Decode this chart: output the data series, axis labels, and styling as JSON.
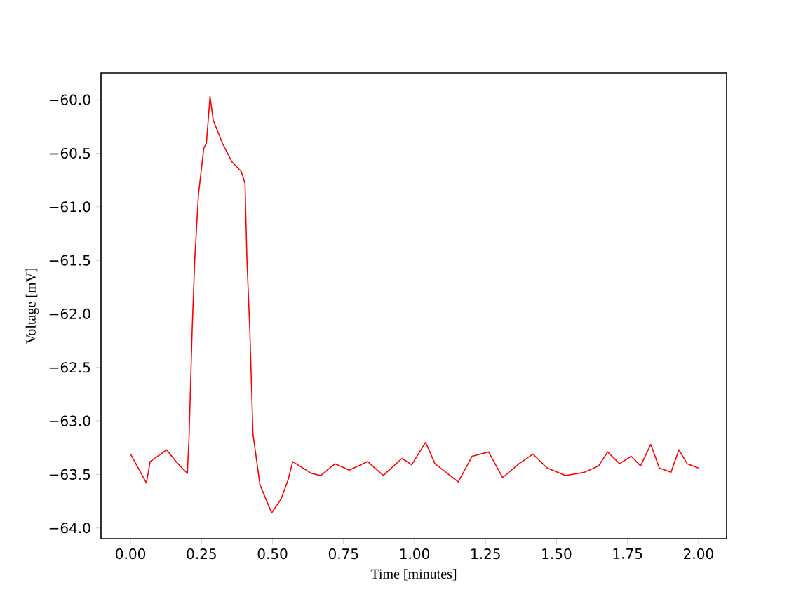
{
  "chart_data": {
    "type": "line",
    "xlabel": "Time [minutes]",
    "ylabel": "Voltage [mV]",
    "color": "#ff0000",
    "line_style": "solid",
    "x": [
      0,
      0.056,
      0.069,
      0.127,
      0.16,
      0.2,
      0.206,
      0.217,
      0.226,
      0.239,
      0.258,
      0.267,
      0.28,
      0.291,
      0.324,
      0.357,
      0.39,
      0.403,
      0.41,
      0.42,
      0.431,
      0.456,
      0.497,
      0.53,
      0.555,
      0.571,
      0.637,
      0.67,
      0.72,
      0.77,
      0.835,
      0.89,
      0.956,
      0.99,
      1.039,
      1.072,
      1.154,
      1.203,
      1.261,
      1.31,
      1.368,
      1.417,
      1.467,
      1.532,
      1.598,
      1.648,
      1.68,
      1.722,
      1.763,
      1.796,
      1.832,
      1.862,
      1.903,
      1.931,
      1.96,
      2.0
    ],
    "values": [
      -63.31,
      -63.58,
      -63.38,
      -63.27,
      -63.38,
      -63.49,
      -63.16,
      -62.15,
      -61.5,
      -60.89,
      -60.45,
      -60.41,
      -59.97,
      -60.19,
      -60.41,
      -60.58,
      -60.67,
      -60.78,
      -61.5,
      -62.15,
      -63.12,
      -63.6,
      -63.86,
      -63.73,
      -63.55,
      -63.38,
      -63.49,
      -63.51,
      -63.4,
      -63.46,
      -63.38,
      -63.51,
      -63.35,
      -63.41,
      -63.2,
      -63.4,
      -63.57,
      -63.33,
      -63.29,
      -63.53,
      -63.4,
      -63.31,
      -63.44,
      -63.51,
      -63.48,
      -63.42,
      -63.29,
      -63.4,
      -63.33,
      -63.42,
      -63.22,
      -63.44,
      -63.48,
      -63.27,
      -63.4,
      -63.44
    ],
    "xlim": [
      -0.104,
      2.099
    ],
    "ylim": [
      -64.1,
      -59.75
    ],
    "xticks": [
      {
        "value": 0,
        "label": "0.00"
      },
      {
        "value": 0.25,
        "label": "0.25"
      },
      {
        "value": 0.5,
        "label": "0.50"
      },
      {
        "value": 0.75,
        "label": "0.75"
      },
      {
        "value": 1,
        "label": "1.00"
      },
      {
        "value": 1.25,
        "label": "1.25"
      },
      {
        "value": 1.5,
        "label": "1.50"
      },
      {
        "value": 1.75,
        "label": "1.75"
      },
      {
        "value": 2,
        "label": "2.00"
      }
    ],
    "yticks": [
      {
        "value": -64,
        "label": "−64.0"
      },
      {
        "value": -63.5,
        "label": "−63.5"
      },
      {
        "value": -63,
        "label": "−63.0"
      },
      {
        "value": -62.5,
        "label": "−62.5"
      },
      {
        "value": -62,
        "label": "−62.0"
      },
      {
        "value": -61.5,
        "label": "−61.5"
      },
      {
        "value": -61,
        "label": "−61.0"
      },
      {
        "value": -60.5,
        "label": "−60.5"
      },
      {
        "value": -60,
        "label": "−60.0"
      }
    ]
  }
}
